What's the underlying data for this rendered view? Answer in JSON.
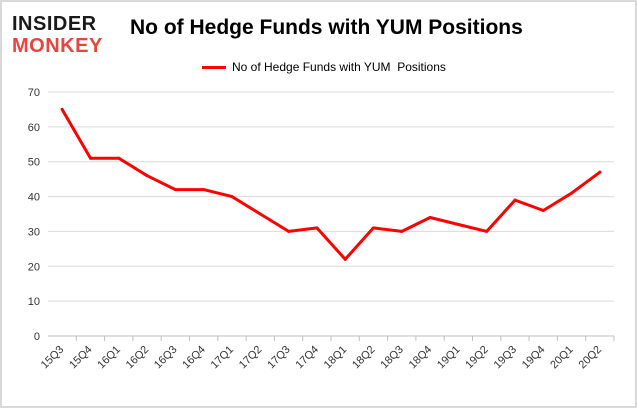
{
  "logo": {
    "line1": "INSIDER",
    "line2": "MONKEY",
    "color_dark": "#1a1a1a",
    "color_accent": "#e8453c"
  },
  "chart_data": {
    "type": "line",
    "title": "No of Hedge Funds with YUM Positions",
    "xlabel": "",
    "ylabel": "",
    "categories": [
      "15Q3",
      "15Q4",
      "16Q1",
      "16Q2",
      "16Q3",
      "16Q4",
      "17Q1",
      "17Q2",
      "17Q3",
      "17Q4",
      "18Q1",
      "18Q2",
      "18Q3",
      "18Q4",
      "19Q1",
      "19Q2",
      "19Q3",
      "19Q4",
      "20Q1",
      "20Q2"
    ],
    "series": [
      {
        "name": "No of Hedge Funds with YUM  Positions",
        "color": "#ff0000",
        "values": [
          65,
          51,
          51,
          46,
          42,
          42,
          40,
          35,
          30,
          31,
          22,
          31,
          30,
          34,
          32,
          30,
          39,
          36,
          41,
          47
        ]
      }
    ],
    "ylim": [
      0,
      70
    ],
    "yticks": [
      0,
      10,
      20,
      30,
      40,
      50,
      60,
      70
    ],
    "grid": true,
    "legend": "top-center",
    "grid_color": "#d9d9d9",
    "axis_color": "#bfbfbf"
  }
}
